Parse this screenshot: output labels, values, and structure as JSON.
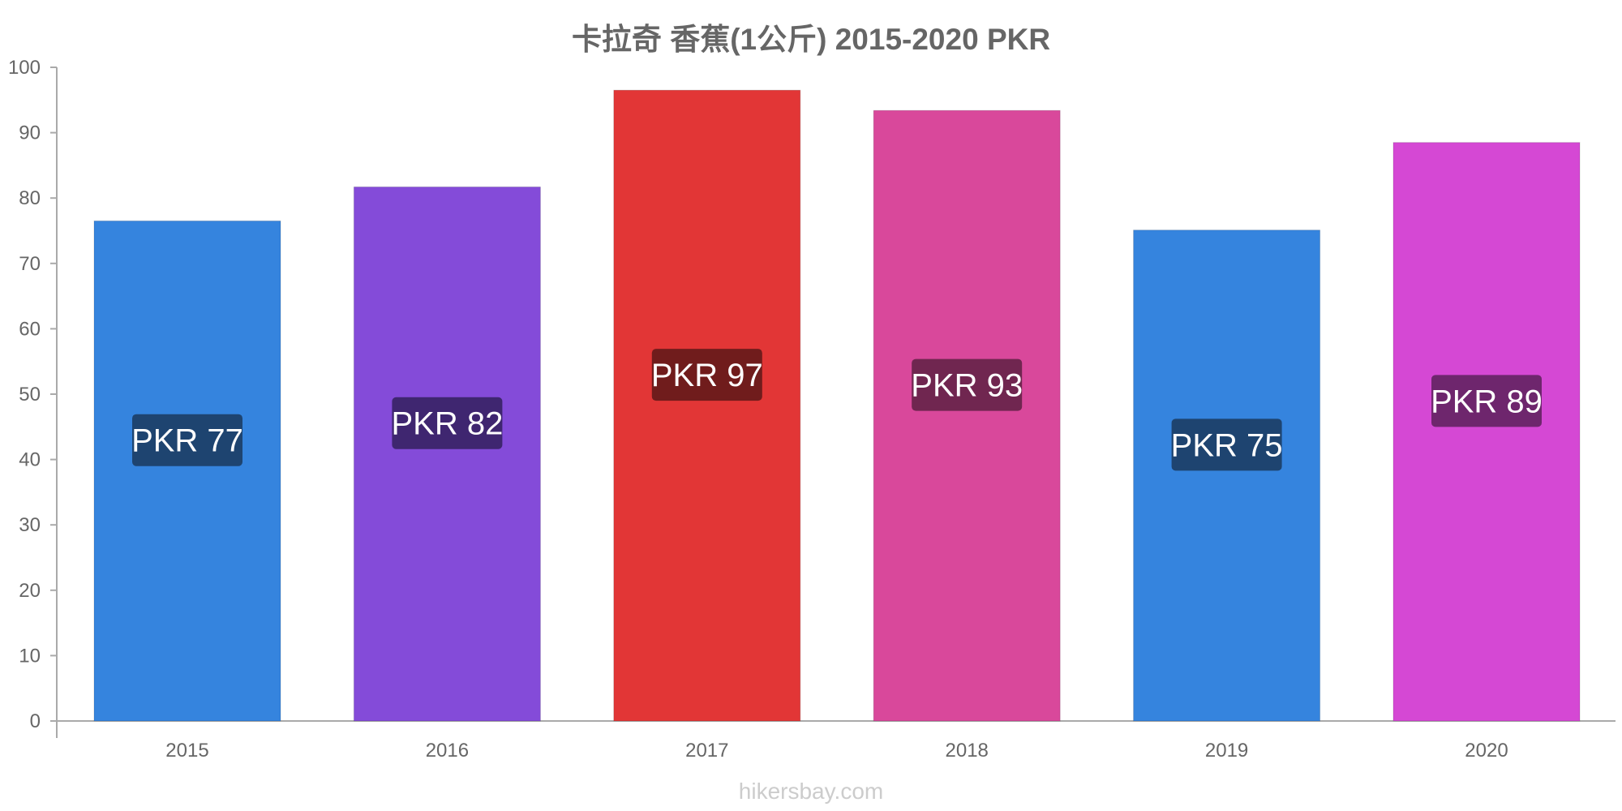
{
  "chart_data": {
    "type": "bar",
    "title": "卡拉奇 香蕉(1公斤) 2015-2020 PKR",
    "xlabel": "",
    "ylabel": "",
    "ylim": [
      0,
      100
    ],
    "yticks": [
      0,
      10,
      20,
      30,
      40,
      50,
      60,
      70,
      80,
      90,
      100
    ],
    "categories": [
      "2015",
      "2016",
      "2017",
      "2018",
      "2019",
      "2020"
    ],
    "values": [
      76.5,
      81.7,
      96.5,
      93.4,
      75.1,
      88.5
    ],
    "data_labels": [
      "PKR 77",
      "PKR 82",
      "PKR 97",
      "PKR 93",
      "PKR 75",
      "PKR 89"
    ],
    "colors": [
      "#3584de",
      "#844bd9",
      "#e23636",
      "#d9489b",
      "#3584de",
      "#d548d4"
    ],
    "label_colors": [
      "#1e4470",
      "#3f2670",
      "#701c1c",
      "#702650",
      "#1e4470",
      "#6e266d"
    ],
    "grid": false
  },
  "watermark": "hikersbay.com"
}
